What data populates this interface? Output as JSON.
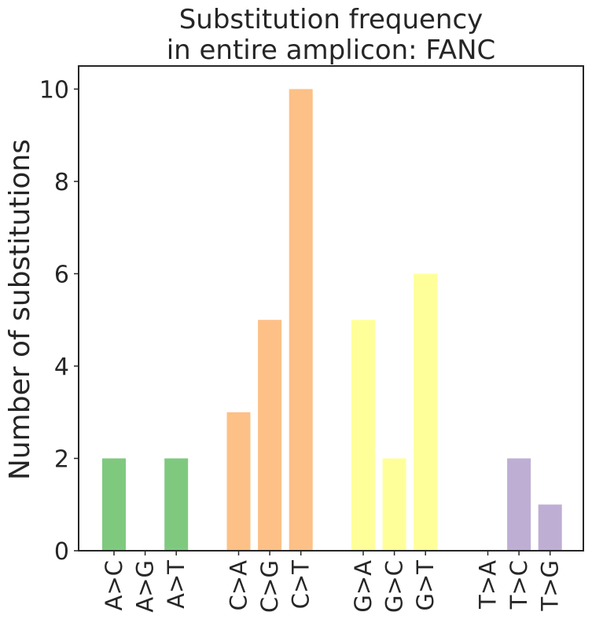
{
  "chart_data": {
    "type": "bar",
    "title_lines": [
      "Substitution frequency",
      "in entire amplicon: FANC"
    ],
    "xlabel": "",
    "ylabel": "Number of substitutions",
    "ylim": [
      0,
      10.5
    ],
    "yticks": [
      0,
      2,
      4,
      6,
      8,
      10
    ],
    "grid": false,
    "legend": "none",
    "groups": [
      {
        "color": "#7fc97f",
        "categories": [
          "A>C",
          "A>G",
          "A>T"
        ],
        "values": [
          2,
          0,
          2
        ]
      },
      {
        "color": "#fdc086",
        "categories": [
          "C>A",
          "C>G",
          "C>T"
        ],
        "values": [
          3,
          5,
          10
        ]
      },
      {
        "color": "#ffff99",
        "categories": [
          "G>A",
          "G>C",
          "G>T"
        ],
        "values": [
          5,
          2,
          6
        ]
      },
      {
        "color": "#beaed4",
        "categories": [
          "T>A",
          "T>C",
          "T>G"
        ],
        "values": [
          0,
          2,
          1
        ]
      }
    ]
  }
}
